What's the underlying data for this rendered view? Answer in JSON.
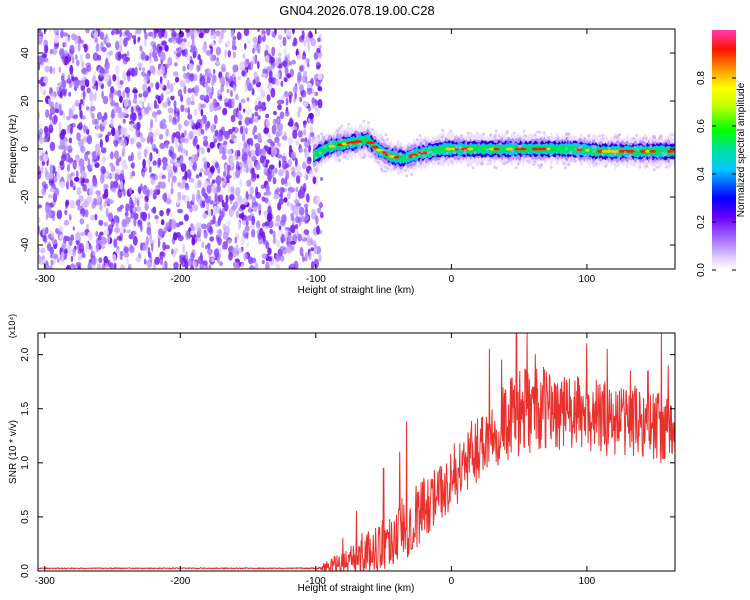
{
  "title": "GN04.2026.078.19.00.C28",
  "chart_data": [
    {
      "type": "heatmap",
      "panel": "spectrogram",
      "xlabel": "Height of straight line (km)",
      "ylabel": "Frequency (Hz)",
      "xlim": [
        -305,
        165
      ],
      "ylim": [
        -50,
        50
      ],
      "xticks": [
        -300,
        -200,
        -100,
        0,
        100
      ],
      "xtick_labels": [
        "-300",
        "-200",
        "-100",
        "0",
        "100"
      ],
      "yticks": [
        -40,
        -20,
        0,
        20,
        40
      ],
      "ytick_labels": [
        "-40",
        "-20",
        "0",
        "20",
        "40"
      ],
      "noise_region_km": [
        -305,
        -100
      ],
      "ridge_points": [
        [
          -102,
          -3
        ],
        [
          -90,
          1
        ],
        [
          -80,
          2
        ],
        [
          -70,
          3
        ],
        [
          -62,
          4
        ],
        [
          -55,
          0
        ],
        [
          -45,
          -3
        ],
        [
          -35,
          -4
        ],
        [
          -25,
          -2
        ],
        [
          -15,
          -1
        ],
        [
          -5,
          0
        ],
        [
          10,
          0
        ],
        [
          30,
          0
        ],
        [
          60,
          0
        ],
        [
          90,
          0
        ],
        [
          110,
          -1
        ],
        [
          130,
          -1
        ],
        [
          165,
          -1
        ]
      ],
      "colorbar": {
        "label": "Normalized spectral amplitude",
        "range": [
          0.0,
          1.0
        ],
        "ticks": [
          0.0,
          0.2,
          0.4,
          0.6,
          0.8
        ],
        "tick_labels": [
          "0.0",
          "0.2",
          "0.4",
          "0.6",
          "0.8"
        ]
      }
    },
    {
      "type": "line",
      "panel": "snr",
      "xlabel": "Height of straight line (km)",
      "ylabel": "SNR (10 * v/v)",
      "scale_label": "(x10⁴)",
      "xlim": [
        -305,
        165
      ],
      "ylim": [
        0,
        2.2
      ],
      "xticks": [
        -300,
        -200,
        -100,
        0,
        100
      ],
      "xtick_labels": [
        "-300",
        "-200",
        "-100",
        "0",
        "100"
      ],
      "yticks": [
        0,
        0.5,
        1.0,
        1.5,
        2.0
      ],
      "ytick_labels": [
        "0.0",
        "0.5",
        "1.0",
        "1.5",
        "2.0"
      ],
      "series": [
        {
          "name": "SNR",
          "color": "#e8302c",
          "envelope": {
            "x": [
              -305,
              -100,
              -90,
              -80,
              -70,
              -60,
              -50,
              -40,
              -30,
              -20,
              -10,
              0,
              10,
              20,
              30,
              40,
              50,
              60,
              70,
              80,
              90,
              100,
              110,
              120,
              130,
              140,
              150,
              160,
              165
            ],
            "mean": [
              0.02,
              0.02,
              0.05,
              0.08,
              0.12,
              0.18,
              0.25,
              0.35,
              0.45,
              0.6,
              0.7,
              0.85,
              1.0,
              1.15,
              1.3,
              1.38,
              1.45,
              1.5,
              1.5,
              1.48,
              1.45,
              1.45,
              1.42,
              1.4,
              1.4,
              1.38,
              1.35,
              1.3,
              1.3
            ],
            "amp": [
              0.0,
              0.0,
              0.06,
              0.1,
              0.15,
              0.2,
              0.25,
              0.3,
              0.3,
              0.3,
              0.25,
              0.3,
              0.3,
              0.32,
              0.35,
              0.38,
              0.4,
              0.4,
              0.38,
              0.36,
              0.35,
              0.35,
              0.35,
              0.34,
              0.33,
              0.33,
              0.33,
              0.32,
              0.32
            ]
          },
          "spikes": [
            [
              -80,
              0.3
            ],
            [
              -70,
              0.55
            ],
            [
              -66,
              0.35
            ],
            [
              -50,
              0.95
            ],
            [
              -38,
              1.1
            ],
            [
              -33,
              1.38
            ],
            [
              -15,
              0.85
            ],
            [
              -5,
              0.9
            ],
            [
              5,
              0.95
            ],
            [
              28,
              2.05
            ],
            [
              37,
              1.95
            ],
            [
              48,
              2.25
            ],
            [
              56,
              2.2
            ],
            [
              62,
              2.0
            ],
            [
              100,
              2.1
            ],
            [
              115,
              2.05
            ],
            [
              132,
              1.85
            ],
            [
              145,
              1.85
            ],
            [
              155,
              2.25
            ],
            [
              160,
              1.9
            ]
          ]
        }
      ]
    }
  ]
}
